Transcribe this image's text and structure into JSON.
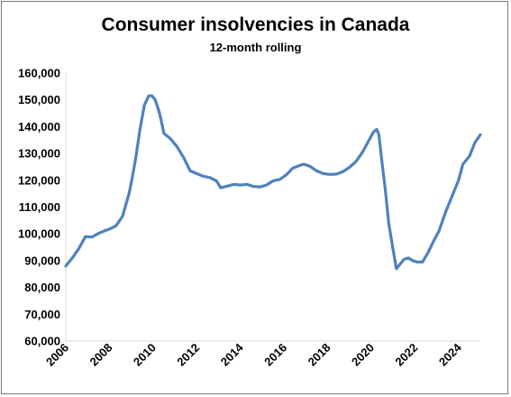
{
  "chart_data": {
    "type": "line",
    "title": "Consumer insolvencies in Canada",
    "subtitle": "12-month rolling",
    "xlabel": "",
    "ylabel": "",
    "ylim": [
      60000,
      160000
    ],
    "xlim": [
      2006,
      2025
    ],
    "grid": false,
    "legend": "none",
    "y_ticks": [
      "60,000",
      "70,000",
      "80,000",
      "90,000",
      "100,000",
      "110,000",
      "120,000",
      "130,000",
      "140,000",
      "150,000",
      "160,000"
    ],
    "x_ticks": [
      "2006",
      "2008",
      "2010",
      "2012",
      "2014",
      "2016",
      "2018",
      "2020",
      "2022",
      "2024"
    ],
    "series": [
      {
        "color": "#4f81bd",
        "points": [
          [
            2006.0,
            88000
          ],
          [
            2006.3,
            91000
          ],
          [
            2006.6,
            94500
          ],
          [
            2006.9,
            99000
          ],
          [
            2007.2,
            98800
          ],
          [
            2007.5,
            100200
          ],
          [
            2007.8,
            101200
          ],
          [
            2008.0,
            101800
          ],
          [
            2008.3,
            103000
          ],
          [
            2008.6,
            106500
          ],
          [
            2008.9,
            115000
          ],
          [
            2009.0,
            119000
          ],
          [
            2009.2,
            128000
          ],
          [
            2009.4,
            139000
          ],
          [
            2009.6,
            148000
          ],
          [
            2009.8,
            151500
          ],
          [
            2009.95,
            151500
          ],
          [
            2010.1,
            150000
          ],
          [
            2010.3,
            145000
          ],
          [
            2010.5,
            137500
          ],
          [
            2010.8,
            135500
          ],
          [
            2011.1,
            132500
          ],
          [
            2011.4,
            128500
          ],
          [
            2011.7,
            123500
          ],
          [
            2012.0,
            122500
          ],
          [
            2012.3,
            121500
          ],
          [
            2012.6,
            121000
          ],
          [
            2012.9,
            119800
          ],
          [
            2013.1,
            117200
          ],
          [
            2013.4,
            117800
          ],
          [
            2013.7,
            118500
          ],
          [
            2014.0,
            118200
          ],
          [
            2014.3,
            118500
          ],
          [
            2014.6,
            117700
          ],
          [
            2014.9,
            117500
          ],
          [
            2015.2,
            118200
          ],
          [
            2015.5,
            119800
          ],
          [
            2015.8,
            120300
          ],
          [
            2016.1,
            122000
          ],
          [
            2016.4,
            124500
          ],
          [
            2016.7,
            125500
          ],
          [
            2016.9,
            126000
          ],
          [
            2017.2,
            125200
          ],
          [
            2017.5,
            123500
          ],
          [
            2017.8,
            122500
          ],
          [
            2018.1,
            122200
          ],
          [
            2018.4,
            122300
          ],
          [
            2018.7,
            123200
          ],
          [
            2019.0,
            124800
          ],
          [
            2019.3,
            127000
          ],
          [
            2019.6,
            130500
          ],
          [
            2019.9,
            135000
          ],
          [
            2020.1,
            138000
          ],
          [
            2020.25,
            139000
          ],
          [
            2020.35,
            137000
          ],
          [
            2020.5,
            126000
          ],
          [
            2020.65,
            116000
          ],
          [
            2020.8,
            104000
          ],
          [
            2021.0,
            94000
          ],
          [
            2021.15,
            87000
          ],
          [
            2021.3,
            88500
          ],
          [
            2021.5,
            90500
          ],
          [
            2021.7,
            91000
          ],
          [
            2021.9,
            90000
          ],
          [
            2022.1,
            89500
          ],
          [
            2022.35,
            89500
          ],
          [
            2022.6,
            93000
          ],
          [
            2022.9,
            98000
          ],
          [
            2023.1,
            101000
          ],
          [
            2023.4,
            108000
          ],
          [
            2023.7,
            114000
          ],
          [
            2024.0,
            120000
          ],
          [
            2024.2,
            126000
          ],
          [
            2024.5,
            129000
          ],
          [
            2024.75,
            134000
          ],
          [
            2025.0,
            137000
          ]
        ]
      }
    ]
  }
}
